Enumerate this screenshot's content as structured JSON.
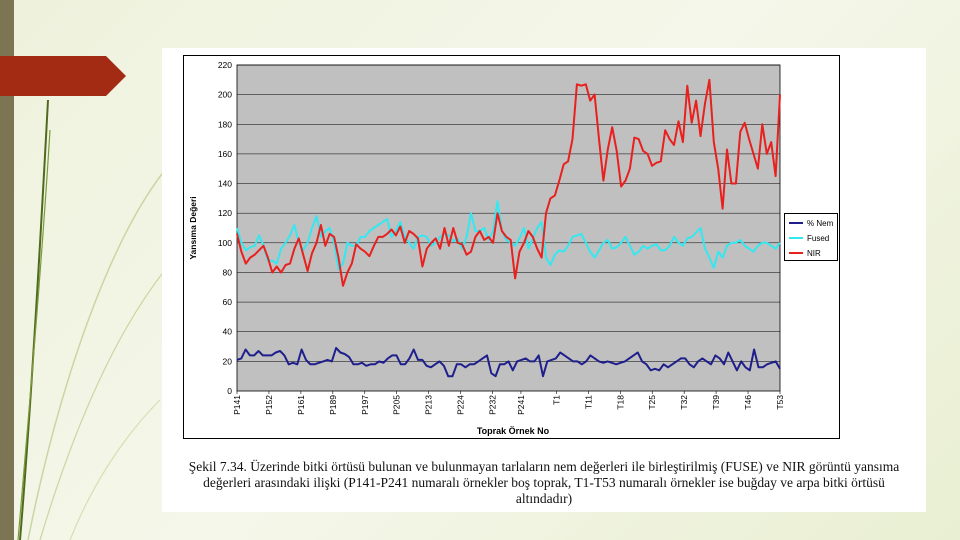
{
  "slide": {
    "caption": {
      "line1": "Şekil 7.34. Üzerinde bitki örtüsü bulunan ve bulunmayan tarlaların nem değerleri ile birleştirilmiş (FUSE) ve NIR görüntü yansıma",
      "line2": "değerleri arasındaki ilişki (P141-P241 numaralı örnekler boş toprak, T1-T53 numaralı örnekler ise buğday ve arpa bitki örtüsü",
      "line3": "altındadır)"
    }
  },
  "chart_data": {
    "type": "line",
    "title": "",
    "xlabel": "Toprak Örnek No",
    "ylabel": "Yansıma Değeri",
    "ylim": [
      0,
      220
    ],
    "yticks": [
      0,
      20,
      40,
      60,
      80,
      100,
      120,
      140,
      160,
      180,
      200,
      220
    ],
    "grid": true,
    "legend_position": "right",
    "x_tick_labels": [
      "P141",
      "P152",
      "P161",
      "P189",
      "P197",
      "P205",
      "P213",
      "P224",
      "P232",
      "P241",
      "T1",
      "T11",
      "T18",
      "T25",
      "T32",
      "T39",
      "T46",
      "T53"
    ],
    "x_tick_positions": [
      0,
      9,
      18,
      27,
      36,
      45,
      54,
      63,
      72,
      80,
      90,
      99,
      108,
      117,
      126,
      135,
      144,
      153
    ],
    "series": [
      {
        "name": "% Nem",
        "color": "#1f1f8c",
        "values": [
          21,
          22,
          28,
          24,
          24,
          27,
          24,
          24,
          24,
          26,
          27,
          24,
          18,
          19,
          18,
          28,
          21,
          18,
          18,
          19,
          20,
          21,
          20,
          29,
          26,
          25,
          23,
          18,
          18,
          19,
          17,
          18,
          18,
          20,
          19,
          22,
          24,
          24,
          18,
          18,
          22,
          28,
          21,
          21,
          17,
          16,
          18,
          20,
          17,
          10,
          10,
          18,
          18,
          16,
          18,
          18,
          20,
          22,
          24,
          12,
          10,
          18,
          18,
          20,
          14,
          20,
          21,
          22,
          20,
          20,
          24,
          10,
          20,
          21,
          22,
          26,
          24,
          22,
          20,
          20,
          18,
          20,
          24,
          22,
          20,
          19,
          20,
          19,
          18,
          19,
          20,
          22,
          24,
          26,
          20,
          18,
          14,
          15,
          14,
          18,
          16,
          18,
          20,
          22,
          22,
          18,
          16,
          20,
          22,
          20,
          18,
          24,
          22,
          18,
          26,
          20,
          14,
          20,
          16,
          14,
          28,
          16,
          16,
          18,
          19,
          20,
          15
        ]
      },
      {
        "name": "Fused",
        "color": "#33e8f0",
        "values": [
          110,
          100,
          95,
          97,
          98,
          105,
          98,
          88,
          88,
          86,
          96,
          100,
          105,
          112,
          100,
          95,
          100,
          110,
          118,
          104,
          108,
          110,
          100,
          82,
          86,
          100,
          98,
          98,
          104,
          104,
          108,
          110,
          112,
          114,
          116,
          104,
          108,
          114,
          104,
          100,
          96,
          104,
          105,
          104,
          98,
          100,
          104,
          106,
          105,
          101,
          103,
          96,
          104,
          120,
          108,
          108,
          110,
          102,
          108,
          128,
          108,
          102,
          100,
          98,
          103,
          110,
          96,
          103,
          110,
          114,
          90,
          85,
          92,
          95,
          94,
          98,
          104,
          105,
          106,
          100,
          94,
          90,
          95,
          100,
          102,
          96,
          97,
          100,
          104,
          98,
          92,
          94,
          98,
          96,
          98,
          99,
          95,
          95,
          98,
          104,
          100,
          98,
          103,
          104,
          107,
          110,
          96,
          90,
          83,
          94,
          90,
          98,
          100,
          100,
          102,
          98,
          96,
          94,
          98,
          100,
          100,
          98,
          96,
          100
        ]
      },
      {
        "name": "NIR",
        "color": "#e8201e",
        "values": [
          106,
          94,
          86,
          90,
          92,
          95,
          98,
          90,
          80,
          84,
          80,
          85,
          86,
          96,
          103,
          92,
          81,
          93,
          100,
          112,
          98,
          106,
          104,
          90,
          71,
          80,
          86,
          99,
          96,
          94,
          91,
          98,
          104,
          104,
          106,
          109,
          105,
          111,
          100,
          108,
          106,
          103,
          84,
          96,
          100,
          103,
          96,
          110,
          98,
          110,
          100,
          99,
          92,
          94,
          104,
          108,
          102,
          104,
          100,
          120,
          108,
          104,
          102,
          76,
          94,
          100,
          108,
          104,
          96,
          90,
          120,
          130,
          132,
          142,
          153,
          155,
          170,
          207,
          206,
          207,
          196,
          200,
          170,
          142,
          163,
          178,
          162,
          138,
          142,
          150,
          171,
          170,
          162,
          160,
          152,
          154,
          155,
          176,
          170,
          166,
          182,
          168,
          206,
          181,
          196,
          172,
          194,
          210,
          168,
          150,
          123,
          163,
          140,
          140,
          175,
          181,
          170,
          160,
          150,
          180,
          160,
          168,
          145,
          200
        ]
      }
    ]
  }
}
